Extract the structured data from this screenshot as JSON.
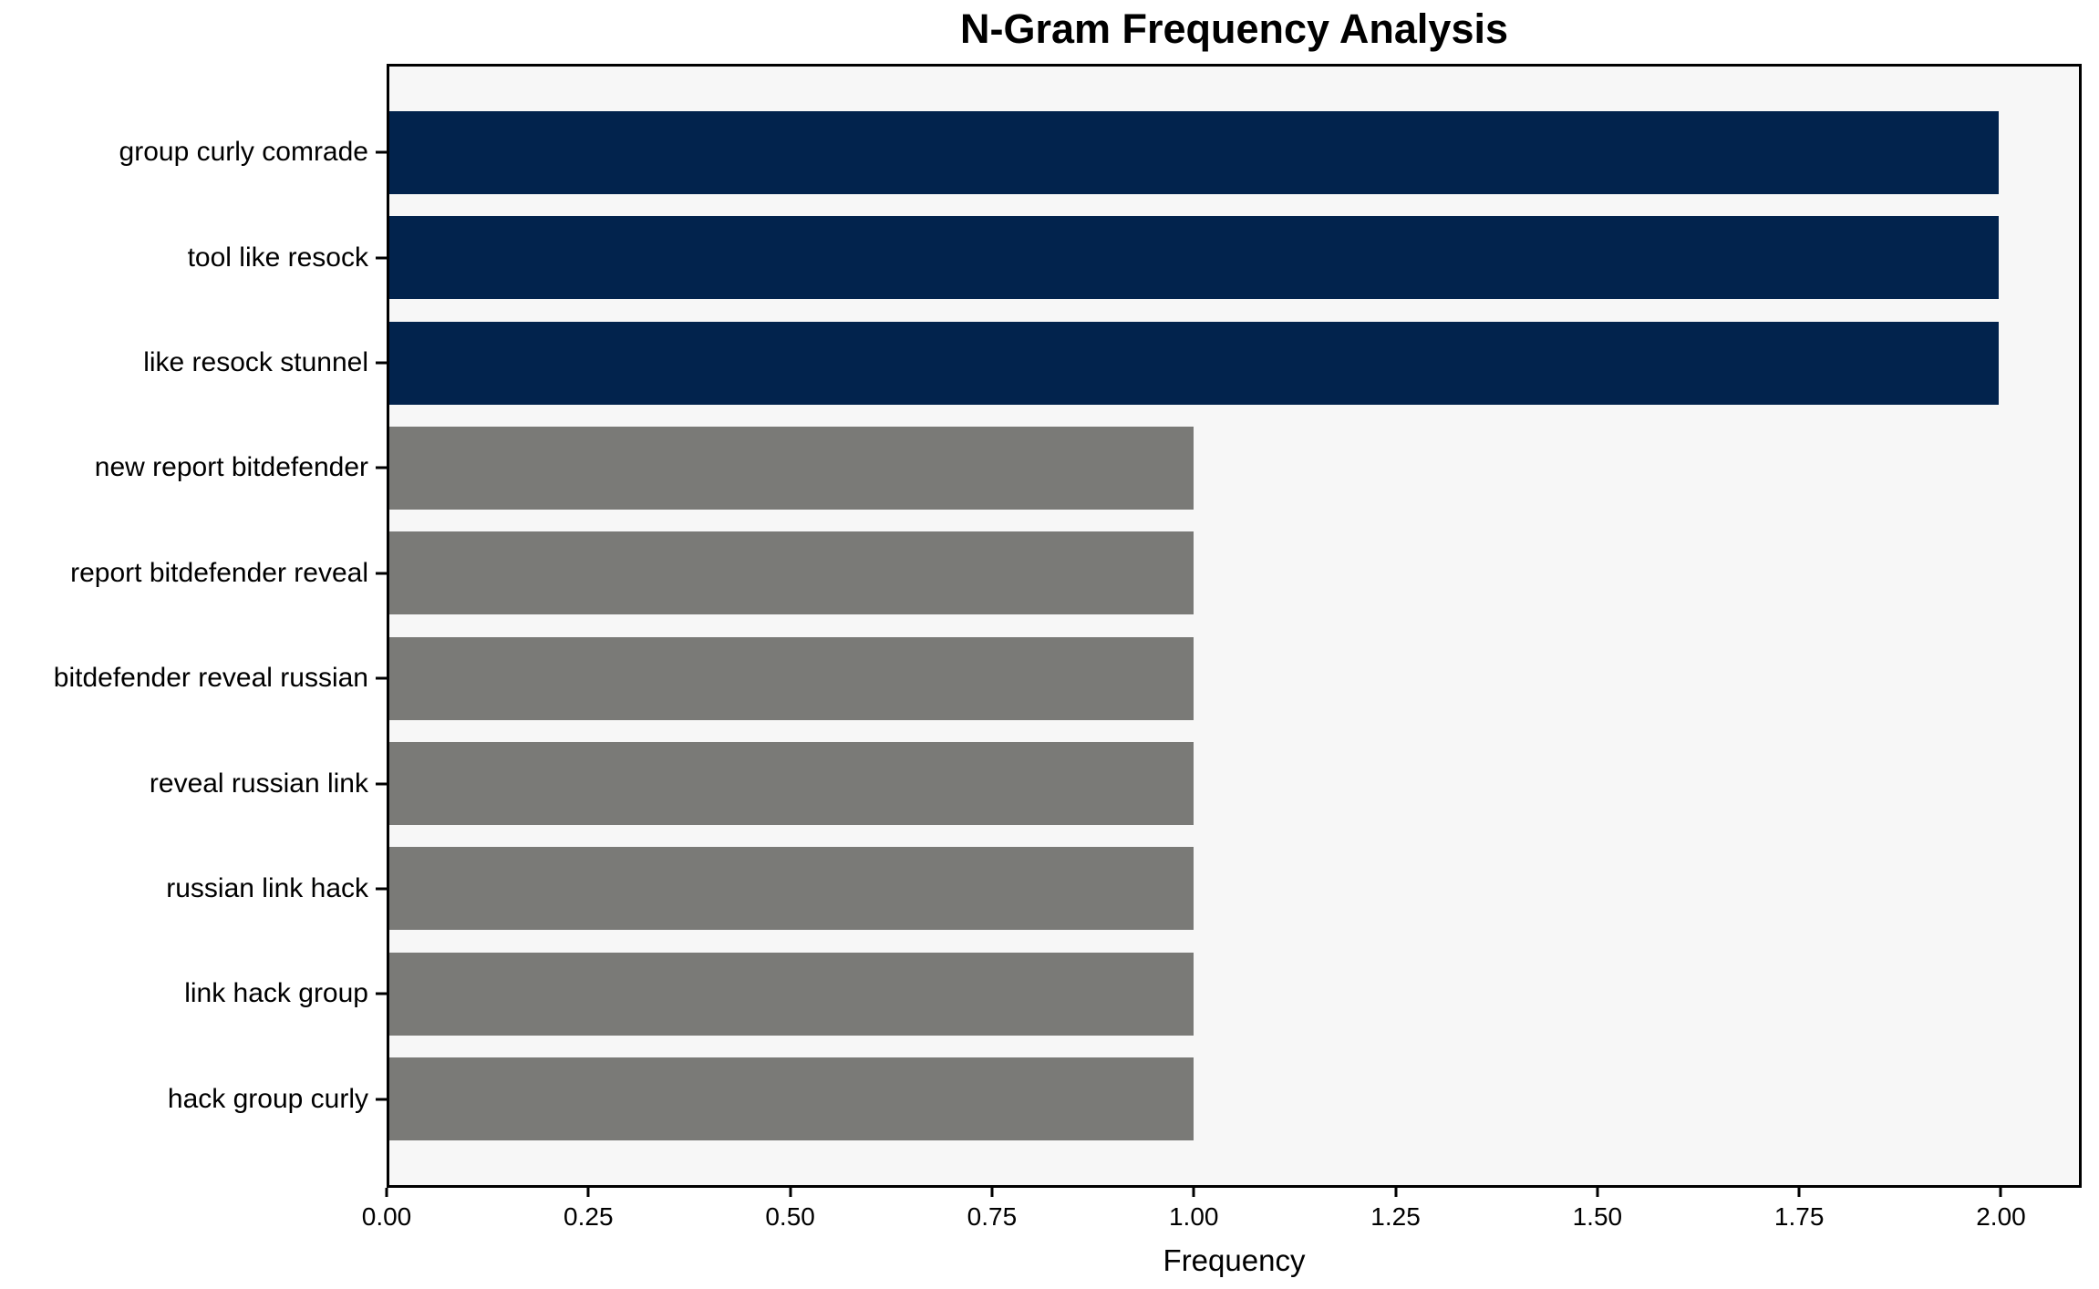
{
  "chart_data": {
    "type": "bar",
    "orientation": "horizontal",
    "title": "N-Gram Frequency Analysis",
    "xlabel": "Frequency",
    "ylabel": "",
    "categories": [
      "group curly comrade",
      "tool like resock",
      "like resock stunnel",
      "new report bitdefender",
      "report bitdefender reveal",
      "bitdefender reveal russian",
      "reveal russian link",
      "russian link hack",
      "link hack group",
      "hack group curly"
    ],
    "values": [
      2,
      2,
      2,
      1,
      1,
      1,
      1,
      1,
      1,
      1
    ],
    "bar_colors": [
      "#02234d",
      "#02234d",
      "#02234d",
      "#7a7a77",
      "#7a7a77",
      "#7a7a77",
      "#7a7a77",
      "#7a7a77",
      "#7a7a77",
      "#7a7a77"
    ],
    "x_tick_values": [
      0,
      0.25,
      0.5,
      0.75,
      1.0,
      1.25,
      1.5,
      1.75,
      2.0
    ],
    "x_tick_labels": [
      "0.00",
      "0.25",
      "0.50",
      "0.75",
      "1.00",
      "1.25",
      "1.50",
      "1.75",
      "2.00"
    ],
    "xlim": [
      0,
      2.1
    ],
    "grid": false,
    "legend": null,
    "colors": {
      "highlight_bar": "#02234d",
      "normal_bar": "#7a7a77",
      "plot_background": "#f7f7f7",
      "figure_background": "#ffffff",
      "spine": "#000000",
      "text": "#000000"
    }
  }
}
